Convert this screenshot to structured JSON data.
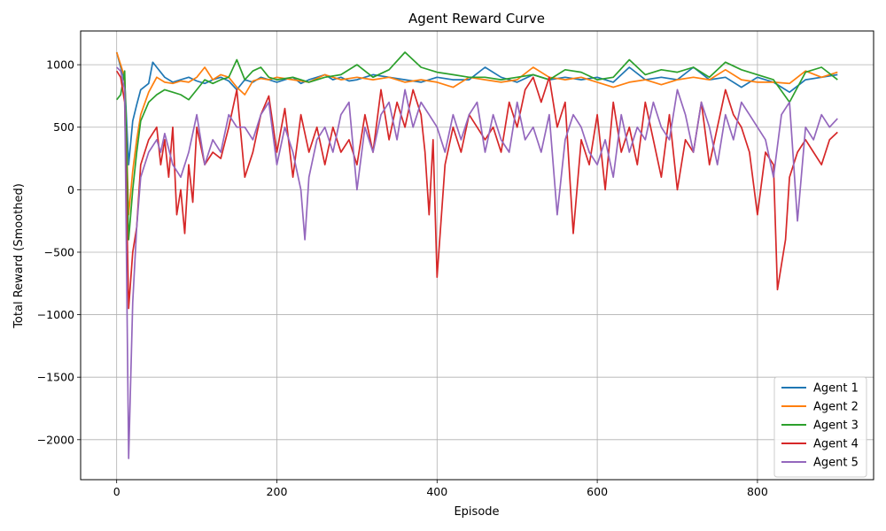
{
  "chart_data": {
    "type": "line",
    "title": "Agent Reward Curve",
    "xlabel": "Episode",
    "ylabel": "Total Reward (Smoothed)",
    "xlim": [
      -45,
      945
    ],
    "ylim": [
      -2320,
      1270
    ],
    "xticks": [
      0,
      200,
      400,
      600,
      800
    ],
    "xtick_labels": [
      "0",
      "200",
      "400",
      "600",
      "800"
    ],
    "yticks": [
      -2000,
      -1500,
      -1000,
      -500,
      0,
      500,
      1000
    ],
    "ytick_labels": [
      "−2000",
      "−1500",
      "−1000",
      "−500",
      "0",
      "500",
      "1000"
    ],
    "grid": true,
    "legend_position": "bottom-right",
    "series": [
      {
        "name": "Agent 1",
        "color": "#1f77b4",
        "x": [
          0,
          5,
          10,
          15,
          20,
          25,
          30,
          40,
          45,
          50,
          60,
          70,
          80,
          90,
          100,
          110,
          120,
          130,
          140,
          150,
          160,
          170,
          180,
          190,
          200,
          210,
          220,
          230,
          240,
          250,
          260,
          270,
          280,
          290,
          300,
          320,
          340,
          360,
          380,
          400,
          420,
          440,
          460,
          480,
          500,
          520,
          540,
          560,
          580,
          600,
          620,
          640,
          660,
          680,
          700,
          720,
          740,
          760,
          780,
          800,
          820,
          840,
          860,
          880,
          900
        ],
        "y": [
          1100,
          980,
          880,
          200,
          550,
          680,
          800,
          850,
          1020,
          980,
          900,
          860,
          880,
          900,
          870,
          850,
          880,
          900,
          870,
          800,
          880,
          860,
          900,
          880,
          860,
          880,
          900,
          850,
          880,
          900,
          920,
          880,
          900,
          870,
          880,
          920,
          900,
          880,
          860,
          900,
          880,
          880,
          980,
          900,
          860,
          920,
          880,
          900,
          880,
          900,
          860,
          980,
          880,
          900,
          880,
          980,
          880,
          900,
          820,
          900,
          860,
          780,
          880,
          900,
          920
        ]
      },
      {
        "name": "Agent 2",
        "color": "#ff7f0e",
        "x": [
          0,
          5,
          10,
          15,
          20,
          25,
          30,
          40,
          50,
          60,
          70,
          80,
          90,
          100,
          110,
          120,
          130,
          140,
          150,
          160,
          170,
          180,
          190,
          200,
          220,
          240,
          260,
          280,
          300,
          320,
          340,
          360,
          380,
          400,
          420,
          440,
          460,
          480,
          500,
          520,
          540,
          560,
          580,
          600,
          620,
          640,
          660,
          680,
          700,
          720,
          740,
          760,
          780,
          800,
          820,
          840,
          860,
          880,
          900
        ],
        "y": [
          1100,
          1000,
          900,
          -200,
          150,
          400,
          600,
          780,
          900,
          860,
          850,
          870,
          860,
          900,
          980,
          880,
          920,
          900,
          820,
          760,
          870,
          890,
          880,
          900,
          880,
          860,
          920,
          880,
          900,
          880,
          900,
          860,
          880,
          860,
          820,
          900,
          880,
          860,
          880,
          980,
          900,
          880,
          900,
          860,
          820,
          860,
          880,
          840,
          880,
          900,
          880,
          960,
          880,
          860,
          860,
          850,
          950,
          900,
          940
        ]
      },
      {
        "name": "Agent 3",
        "color": "#2ca02c",
        "x": [
          0,
          5,
          10,
          15,
          20,
          25,
          30,
          40,
          50,
          60,
          70,
          80,
          90,
          100,
          110,
          120,
          130,
          140,
          150,
          160,
          170,
          180,
          190,
          200,
          220,
          240,
          260,
          280,
          300,
          320,
          340,
          360,
          380,
          400,
          420,
          440,
          460,
          480,
          500,
          520,
          540,
          560,
          580,
          600,
          620,
          640,
          660,
          680,
          700,
          720,
          740,
          760,
          780,
          800,
          820,
          840,
          860,
          880,
          900
        ],
        "y": [
          720,
          760,
          950,
          -400,
          0,
          300,
          550,
          700,
          760,
          800,
          780,
          760,
          720,
          800,
          880,
          850,
          880,
          900,
          1040,
          880,
          950,
          980,
          900,
          880,
          900,
          860,
          900,
          920,
          1000,
          900,
          960,
          1100,
          980,
          940,
          920,
          900,
          900,
          880,
          900,
          920,
          880,
          960,
          940,
          880,
          900,
          1040,
          920,
          960,
          940,
          980,
          900,
          1020,
          960,
          920,
          880,
          700,
          940,
          980,
          880
        ]
      },
      {
        "name": "Agent 4",
        "color": "#d62728",
        "x": [
          0,
          5,
          10,
          15,
          20,
          25,
          30,
          40,
          50,
          55,
          60,
          65,
          70,
          75,
          80,
          85,
          90,
          95,
          100,
          110,
          120,
          130,
          140,
          150,
          160,
          170,
          180,
          190,
          200,
          210,
          220,
          230,
          240,
          250,
          260,
          270,
          280,
          290,
          300,
          310,
          320,
          330,
          340,
          350,
          360,
          370,
          380,
          385,
          390,
          395,
          400,
          410,
          420,
          430,
          440,
          450,
          460,
          470,
          480,
          490,
          500,
          510,
          520,
          530,
          540,
          550,
          560,
          570,
          580,
          590,
          600,
          610,
          620,
          630,
          640,
          650,
          660,
          670,
          680,
          690,
          700,
          710,
          720,
          730,
          740,
          750,
          760,
          770,
          780,
          790,
          800,
          810,
          820,
          825,
          830,
          835,
          840,
          850,
          860,
          870,
          880,
          890,
          900
        ],
        "y": [
          950,
          900,
          700,
          -950,
          -500,
          -300,
          200,
          400,
          500,
          200,
          400,
          100,
          500,
          -200,
          0,
          -350,
          200,
          -100,
          500,
          200,
          300,
          250,
          500,
          800,
          100,
          300,
          600,
          750,
          300,
          650,
          100,
          600,
          300,
          500,
          200,
          500,
          300,
          400,
          200,
          600,
          300,
          800,
          400,
          700,
          500,
          800,
          600,
          300,
          -200,
          400,
          -700,
          200,
          500,
          300,
          600,
          500,
          400,
          500,
          300,
          700,
          500,
          800,
          900,
          700,
          900,
          500,
          700,
          -350,
          400,
          200,
          600,
          0,
          700,
          300,
          500,
          200,
          700,
          400,
          100,
          600,
          0,
          400,
          300,
          700,
          200,
          500,
          800,
          600,
          500,
          300,
          -200,
          300,
          200,
          -800,
          -600,
          -400,
          100,
          300,
          400,
          300,
          200,
          400,
          460
        ]
      },
      {
        "name": "Agent 5",
        "color": "#9467bd",
        "x": [
          0,
          5,
          10,
          15,
          20,
          25,
          30,
          40,
          50,
          55,
          60,
          70,
          80,
          90,
          100,
          110,
          120,
          130,
          140,
          150,
          160,
          170,
          180,
          190,
          200,
          210,
          220,
          230,
          235,
          240,
          250,
          260,
          270,
          280,
          290,
          300,
          310,
          320,
          330,
          340,
          350,
          360,
          370,
          380,
          390,
          400,
          410,
          420,
          430,
          440,
          450,
          460,
          470,
          480,
          490,
          500,
          510,
          520,
          530,
          540,
          550,
          560,
          570,
          580,
          590,
          600,
          610,
          620,
          630,
          640,
          650,
          660,
          670,
          680,
          690,
          700,
          710,
          720,
          730,
          740,
          750,
          760,
          770,
          780,
          790,
          800,
          810,
          820,
          830,
          840,
          850,
          860,
          870,
          880,
          890,
          900
        ],
        "y": [
          980,
          950,
          800,
          -2150,
          -900,
          -300,
          100,
          300,
          400,
          300,
          450,
          200,
          100,
          300,
          600,
          200,
          400,
          300,
          600,
          500,
          500,
          400,
          600,
          700,
          200,
          500,
          300,
          0,
          -400,
          100,
          400,
          500,
          300,
          600,
          700,
          0,
          500,
          300,
          600,
          700,
          400,
          800,
          500,
          700,
          600,
          500,
          300,
          600,
          400,
          600,
          700,
          300,
          600,
          400,
          300,
          700,
          400,
          500,
          300,
          600,
          -200,
          400,
          600,
          500,
          300,
          200,
          400,
          100,
          600,
          300,
          500,
          400,
          700,
          500,
          400,
          800,
          600,
          300,
          700,
          500,
          200,
          600,
          400,
          700,
          600,
          500,
          400,
          100,
          600,
          700,
          -250,
          500,
          400,
          600,
          500,
          570
        ]
      }
    ]
  }
}
